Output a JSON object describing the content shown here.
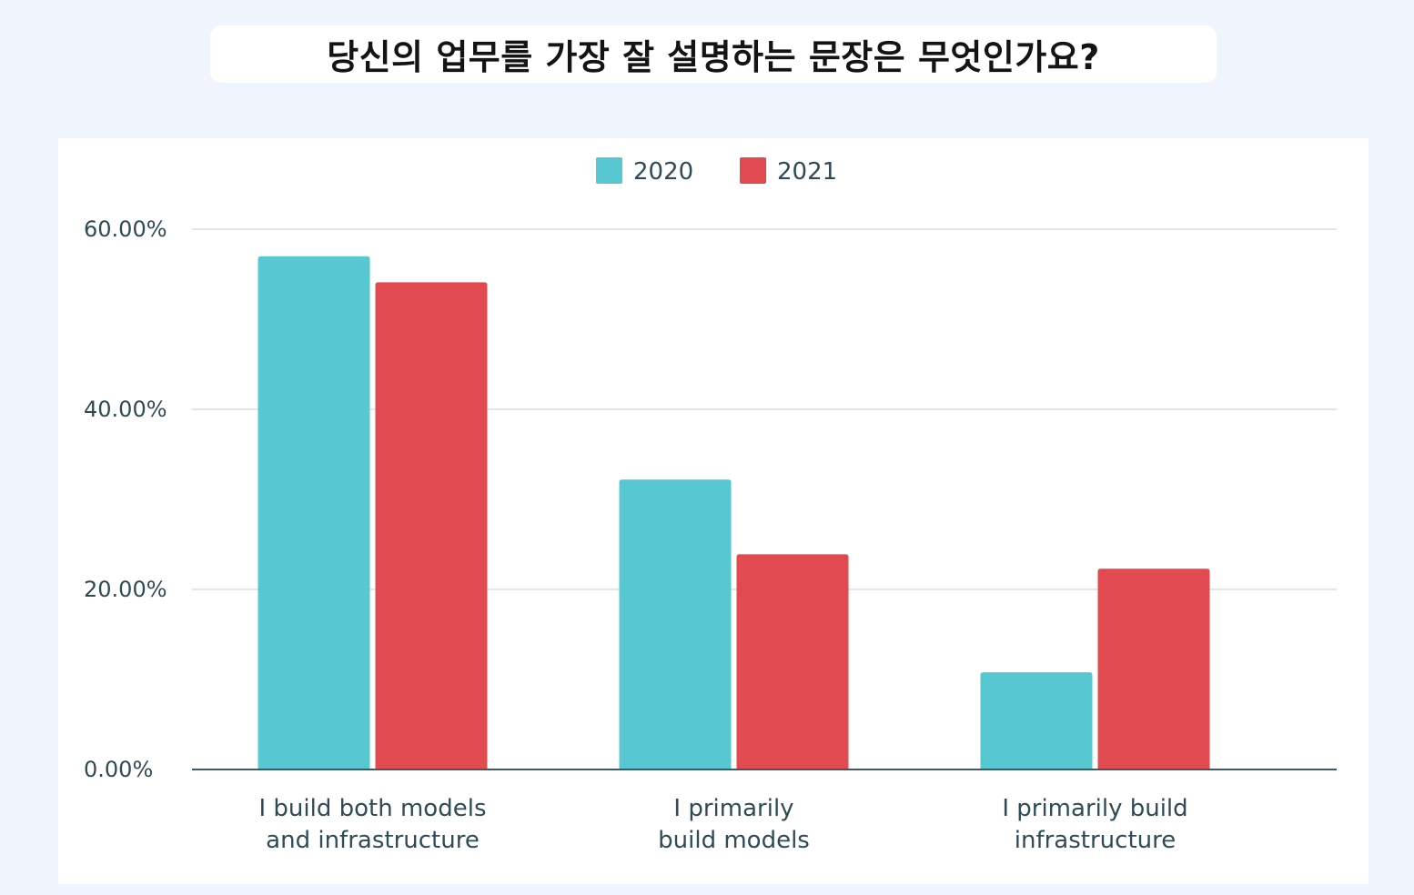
{
  "title": "당신의 업무를 가장 잘 설명하는 문장은 무엇인가요?",
  "chart_data": {
    "type": "bar",
    "categories": [
      [
        "I build both models",
        "and infrastructure"
      ],
      [
        "I primarily",
        "build models"
      ],
      [
        "I primarily build",
        "infrastructure"
      ]
    ],
    "series": [
      {
        "name": "2020",
        "color": "#57c8d1",
        "values": [
          57.0,
          32.2,
          10.8
        ]
      },
      {
        "name": "2021",
        "color": "#e14b50",
        "values": [
          54.1,
          23.9,
          22.3
        ]
      }
    ],
    "yticks": [
      "0.00%",
      "20.00%",
      "40.00%",
      "60.00%"
    ],
    "ytick_values": [
      0,
      20,
      40,
      60
    ],
    "ylim": [
      0,
      60
    ],
    "grid": true,
    "legend_position": "top-center",
    "gridline_color": "#e3e6e8",
    "axis_color": "#3d5a66"
  }
}
